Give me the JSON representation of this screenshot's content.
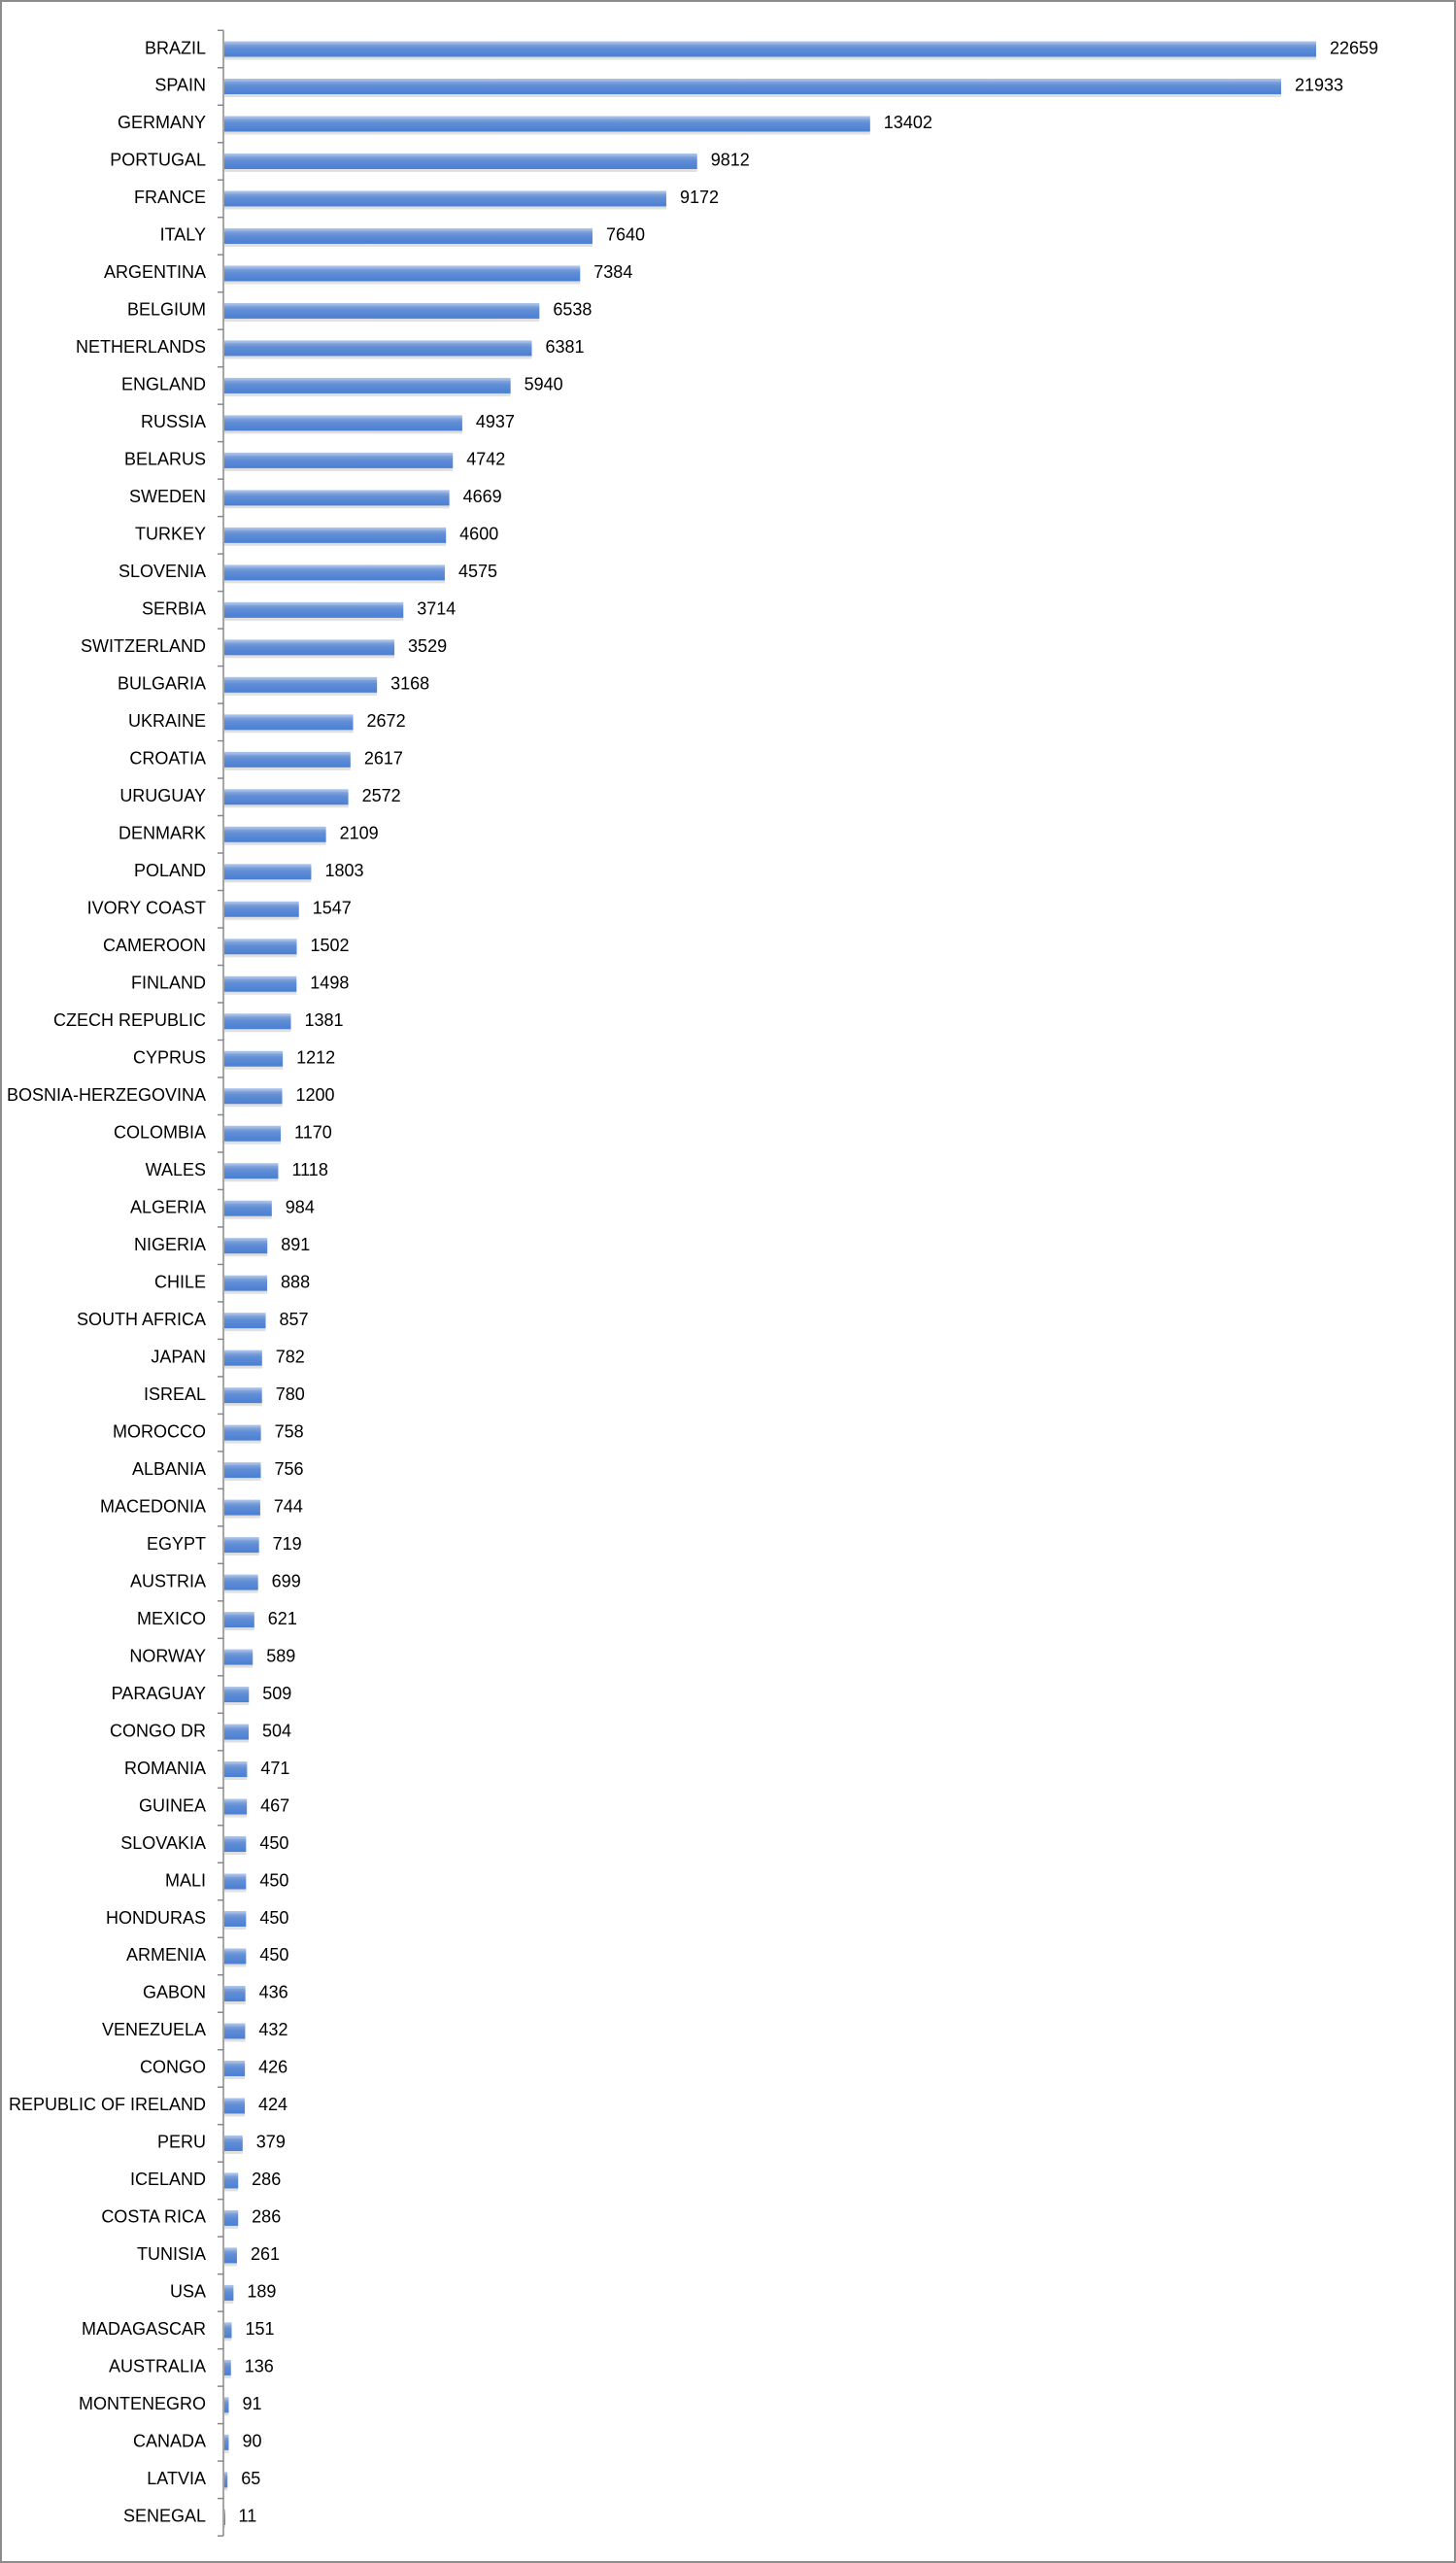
{
  "chart_data": {
    "type": "hbar",
    "color": "#4a7fd4",
    "categories": [
      "BRAZIL",
      "SPAIN",
      "GERMANY",
      "PORTUGAL",
      "FRANCE",
      "ITALY",
      "ARGENTINA",
      "BELGIUM",
      "NETHERLANDS",
      "ENGLAND",
      "RUSSIA",
      "BELARUS",
      "SWEDEN",
      "TURKEY",
      "SLOVENIA",
      "SERBIA",
      "SWITZERLAND",
      "BULGARIA",
      "UKRAINE",
      "CROATIA",
      "URUGUAY",
      "DENMARK",
      "POLAND",
      "IVORY COAST",
      "CAMEROON",
      "FINLAND",
      "CZECH REPUBLIC",
      "CYPRUS",
      "BOSNIA-HERZEGOVINA",
      "COLOMBIA",
      "WALES",
      "ALGERIA",
      "NIGERIA",
      "CHILE",
      "SOUTH AFRICA",
      "JAPAN",
      "ISREAL",
      "MOROCCO",
      "ALBANIA",
      "MACEDONIA",
      "EGYPT",
      "AUSTRIA",
      "MEXICO",
      "NORWAY",
      "PARAGUAY",
      "CONGO DR",
      "ROMANIA",
      "GUINEA",
      "SLOVAKIA",
      "MALI",
      "HONDURAS",
      "ARMENIA",
      "GABON",
      "VENEZUELA",
      "CONGO",
      "REPUBLIC OF IRELAND",
      "PERU",
      "ICELAND",
      "COSTA RICA",
      "TUNISIA",
      "USA",
      "MADAGASCAR",
      "AUSTRALIA",
      "MONTENEGRO",
      "CANADA",
      "LATVIA",
      "SENEGAL"
    ],
    "values": [
      22659,
      21933,
      13402,
      9812,
      9172,
      7640,
      7384,
      6538,
      6381,
      5940,
      4937,
      4742,
      4669,
      4600,
      4575,
      3714,
      3529,
      3168,
      2672,
      2617,
      2572,
      2109,
      1803,
      1547,
      1502,
      1498,
      1381,
      1212,
      1200,
      1170,
      1118,
      984,
      891,
      888,
      857,
      782,
      780,
      758,
      756,
      744,
      719,
      699,
      621,
      589,
      509,
      504,
      471,
      467,
      450,
      450,
      450,
      450,
      436,
      432,
      426,
      424,
      379,
      286,
      286,
      261,
      189,
      151,
      136,
      91,
      90,
      65,
      11
    ]
  }
}
